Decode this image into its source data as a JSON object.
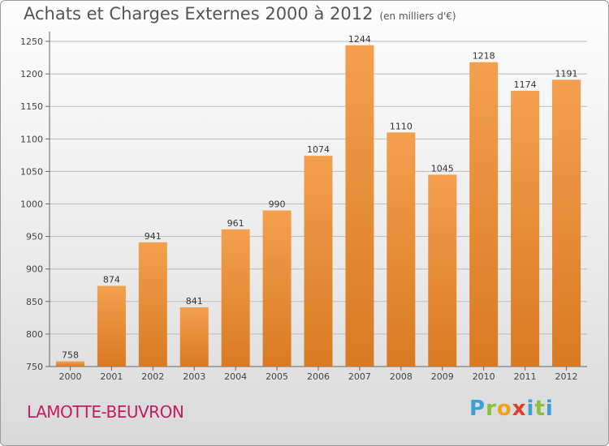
{
  "title": "Achats et Charges Externes 2000 à 2012",
  "subtitle": "(en milliers d'€)",
  "location": "LAMOTTE-BEUVRON",
  "logo": {
    "p": "P",
    "r": "r",
    "o": "o",
    "x": "x",
    "i": "i",
    "t": "t",
    "i2": "i"
  },
  "colors": {
    "bar": "#f3a04e",
    "bar_dark": "#d97a22",
    "axis": "#666666",
    "grid": "#bbbbbb",
    "location": "#c7195f"
  },
  "chart_data": {
    "type": "bar",
    "categories": [
      "2000",
      "2001",
      "2002",
      "2003",
      "2004",
      "2005",
      "2006",
      "2007",
      "2008",
      "2009",
      "2010",
      "2011",
      "2012"
    ],
    "values": [
      758,
      874,
      941,
      841,
      961,
      990,
      1074,
      1244,
      1110,
      1045,
      1218,
      1174,
      1191
    ],
    "yticks": [
      750,
      800,
      850,
      900,
      950,
      1000,
      1050,
      1100,
      1150,
      1200,
      1250
    ],
    "ylim": [
      750,
      1260
    ],
    "grid": true
  }
}
